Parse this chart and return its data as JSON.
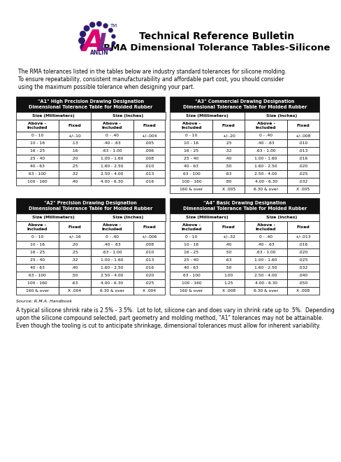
{
  "title1": "Technical Reference Bulletin",
  "title2": "RMA Dimensional Tolerance Tables-Silicone",
  "intro_text": "The RMA tolerances listed in the tables below are industry standard tolerances for silicone molding.\nTo ensure repeatability, consistent manufacturability and affordable part cost, you should consider\nusing the maximum possible tolerance when designing your part.",
  "source_text": "Source: R.M.A. Handbook",
  "footer_text": "A typical silicone shrink rate is 2.5% - 3.5%.  Lot to lot, silicone can and does vary in shrink rate up to .5%.  Depending\nupon the silicone compound selected, part geometry and molding method, \"A1\" tolerances may not be attainable.\nEven though the tooling is cut to anticipate shrinkage, dimensional tolerances must allow for inherent variability.",
  "header_bg": "#1a1a1a",
  "logo_dot_color": "#2d1b6e",
  "logo_a_color": "#e0006e",
  "logo_l_color": "#7b2d8b",
  "tables": [
    {
      "title_line1": "\"A1\" High Precision Drawing Designation",
      "title_line2": "Dimensional Tolerance Table for Molded Rubber",
      "rows": [
        [
          "0 - 10",
          "+/-.10",
          "0 - .40",
          "+/-.004"
        ],
        [
          "10 - 16",
          ".13",
          ".40 - .63",
          ".005"
        ],
        [
          "16 - 25",
          ".16",
          ".63 - 1.00",
          ".006"
        ],
        [
          "25 - 40",
          ".20",
          "1.00 - 1.60",
          ".008"
        ],
        [
          "40 - 63",
          ".25",
          "1.60 - 2.50",
          ".010"
        ],
        [
          "63 - 100",
          ".32",
          "2.50 - 4.00",
          ".013"
        ],
        [
          "100 - 160",
          ".40",
          "4.00 - 6.30",
          ".016"
        ]
      ]
    },
    {
      "title_line1": "\"A3\" Commercial Drawing Designation",
      "title_line2": "Dimensional Tolerance Table for Molded Rubber",
      "rows": [
        [
          "0 - 10",
          "+/-.20",
          "0 - .40",
          "+/-.008"
        ],
        [
          "10 - 16",
          ".25",
          ".40 - .63",
          ".010"
        ],
        [
          "16 - 25",
          ".32",
          ".63 - 1.00",
          ".013"
        ],
        [
          "25 - 40",
          ".40",
          "1.00 - 1.60",
          ".016"
        ],
        [
          "40 - 63",
          ".50",
          "1.60 - 2.50",
          ".020"
        ],
        [
          "63 - 100",
          ".63",
          "2.50 - 4.00",
          ".025"
        ],
        [
          "100 - 160",
          ".80",
          "4.00 - 6.30",
          ".032"
        ],
        [
          "160 & over",
          "X .005",
          "6.30 & over",
          "X .005"
        ]
      ]
    },
    {
      "title_line1": "\"A2\" Precision Drawing Designation",
      "title_line2": "Dimensional Tolerance Table for Molded Rubber",
      "rows": [
        [
          "0 - 10",
          "+/-.16",
          "0 - .40",
          "+/-.006"
        ],
        [
          "10 - 16",
          ".20",
          ".40 - .63",
          ".008"
        ],
        [
          "16 - 25",
          ".25",
          ".63 - 1.00",
          ".010"
        ],
        [
          "25 - 40",
          ".32",
          "1.00 - 1.60",
          ".013"
        ],
        [
          "40 - 63",
          ".40",
          "1.60 - 2.50",
          ".016"
        ],
        [
          "63 - 100",
          ".50",
          "2.50 - 4.00",
          ".020"
        ],
        [
          "100 - 160",
          ".63",
          "4.00 - 6.30",
          ".025"
        ],
        [
          "160 & over",
          "X .004",
          "6.30 & over",
          "X .004"
        ]
      ]
    },
    {
      "title_line1": "\"A4\" Basic Drawing Designation",
      "title_line2": "Dimensional Tolerance Table for Molded Rubber",
      "rows": [
        [
          "0 - 10",
          "+/-.32",
          "0 - .40",
          "+/-.013"
        ],
        [
          "10 - 16",
          ".40",
          ".40 - .63",
          ".016"
        ],
        [
          "16 - 25",
          ".50",
          ".63 - 1.00",
          ".020"
        ],
        [
          "25 - 40",
          ".63",
          "1.00 - 1.60",
          ".025"
        ],
        [
          "40 - 63",
          ".50",
          "1.60 - 2.50",
          ".032"
        ],
        [
          "63 - 100",
          "1.00",
          "2.50 - 4.00",
          ".040"
        ],
        [
          "100 - 160",
          "1.25",
          "4.00 - 6.30",
          ".050"
        ],
        [
          "160 & over",
          "X .008",
          "6.30 & over",
          "X .008"
        ]
      ]
    }
  ]
}
